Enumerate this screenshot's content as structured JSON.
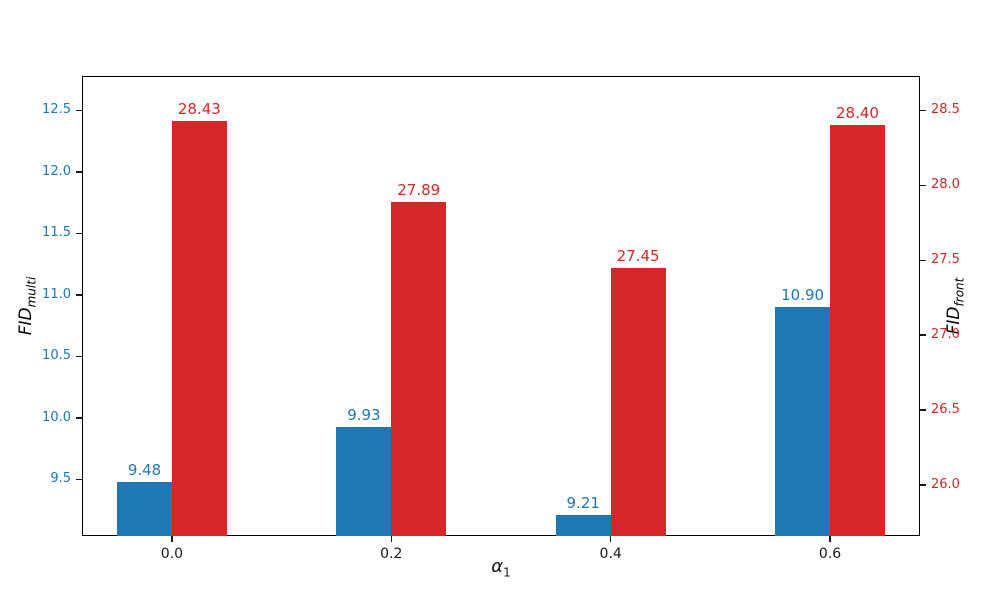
{
  "chart_data": {
    "type": "bar",
    "title": "",
    "xlabel_base": "α",
    "xlabel_sub": "1",
    "categories": [
      "0.0",
      "0.2",
      "0.4",
      "0.6"
    ],
    "x_positions": [
      0,
      1,
      2,
      3
    ],
    "xlim": [
      -0.41,
      3.41
    ],
    "bar_width": 0.25,
    "grid": false,
    "legend": "none",
    "axes": {
      "left": {
        "label_base": "FID",
        "label_sub": "multi",
        "color": "#1f77b4",
        "ticks": [
          9.5,
          10.0,
          10.5,
          11.0,
          11.5,
          12.0,
          12.5
        ],
        "ylim": [
          9.04,
          12.78
        ]
      },
      "right": {
        "label_base": "FID",
        "label_sub": "front",
        "color": "#d62728",
        "ticks": [
          26.0,
          26.5,
          27.0,
          27.5,
          28.0,
          28.5
        ],
        "ylim": [
          25.66,
          28.73
        ]
      }
    },
    "series": [
      {
        "name": "FID_multi",
        "axis": "left",
        "color": "#1f77b4",
        "offset": -0.125,
        "values": [
          9.48,
          9.93,
          9.21,
          10.9
        ],
        "labels": [
          "9.48",
          "9.93",
          "9.21",
          "10.90"
        ]
      },
      {
        "name": "FID_front",
        "axis": "right",
        "color": "#d62728",
        "offset": 0.125,
        "values": [
          28.43,
          27.89,
          27.45,
          28.4
        ],
        "labels": [
          "28.43",
          "27.89",
          "27.45",
          "28.40"
        ]
      }
    ]
  }
}
